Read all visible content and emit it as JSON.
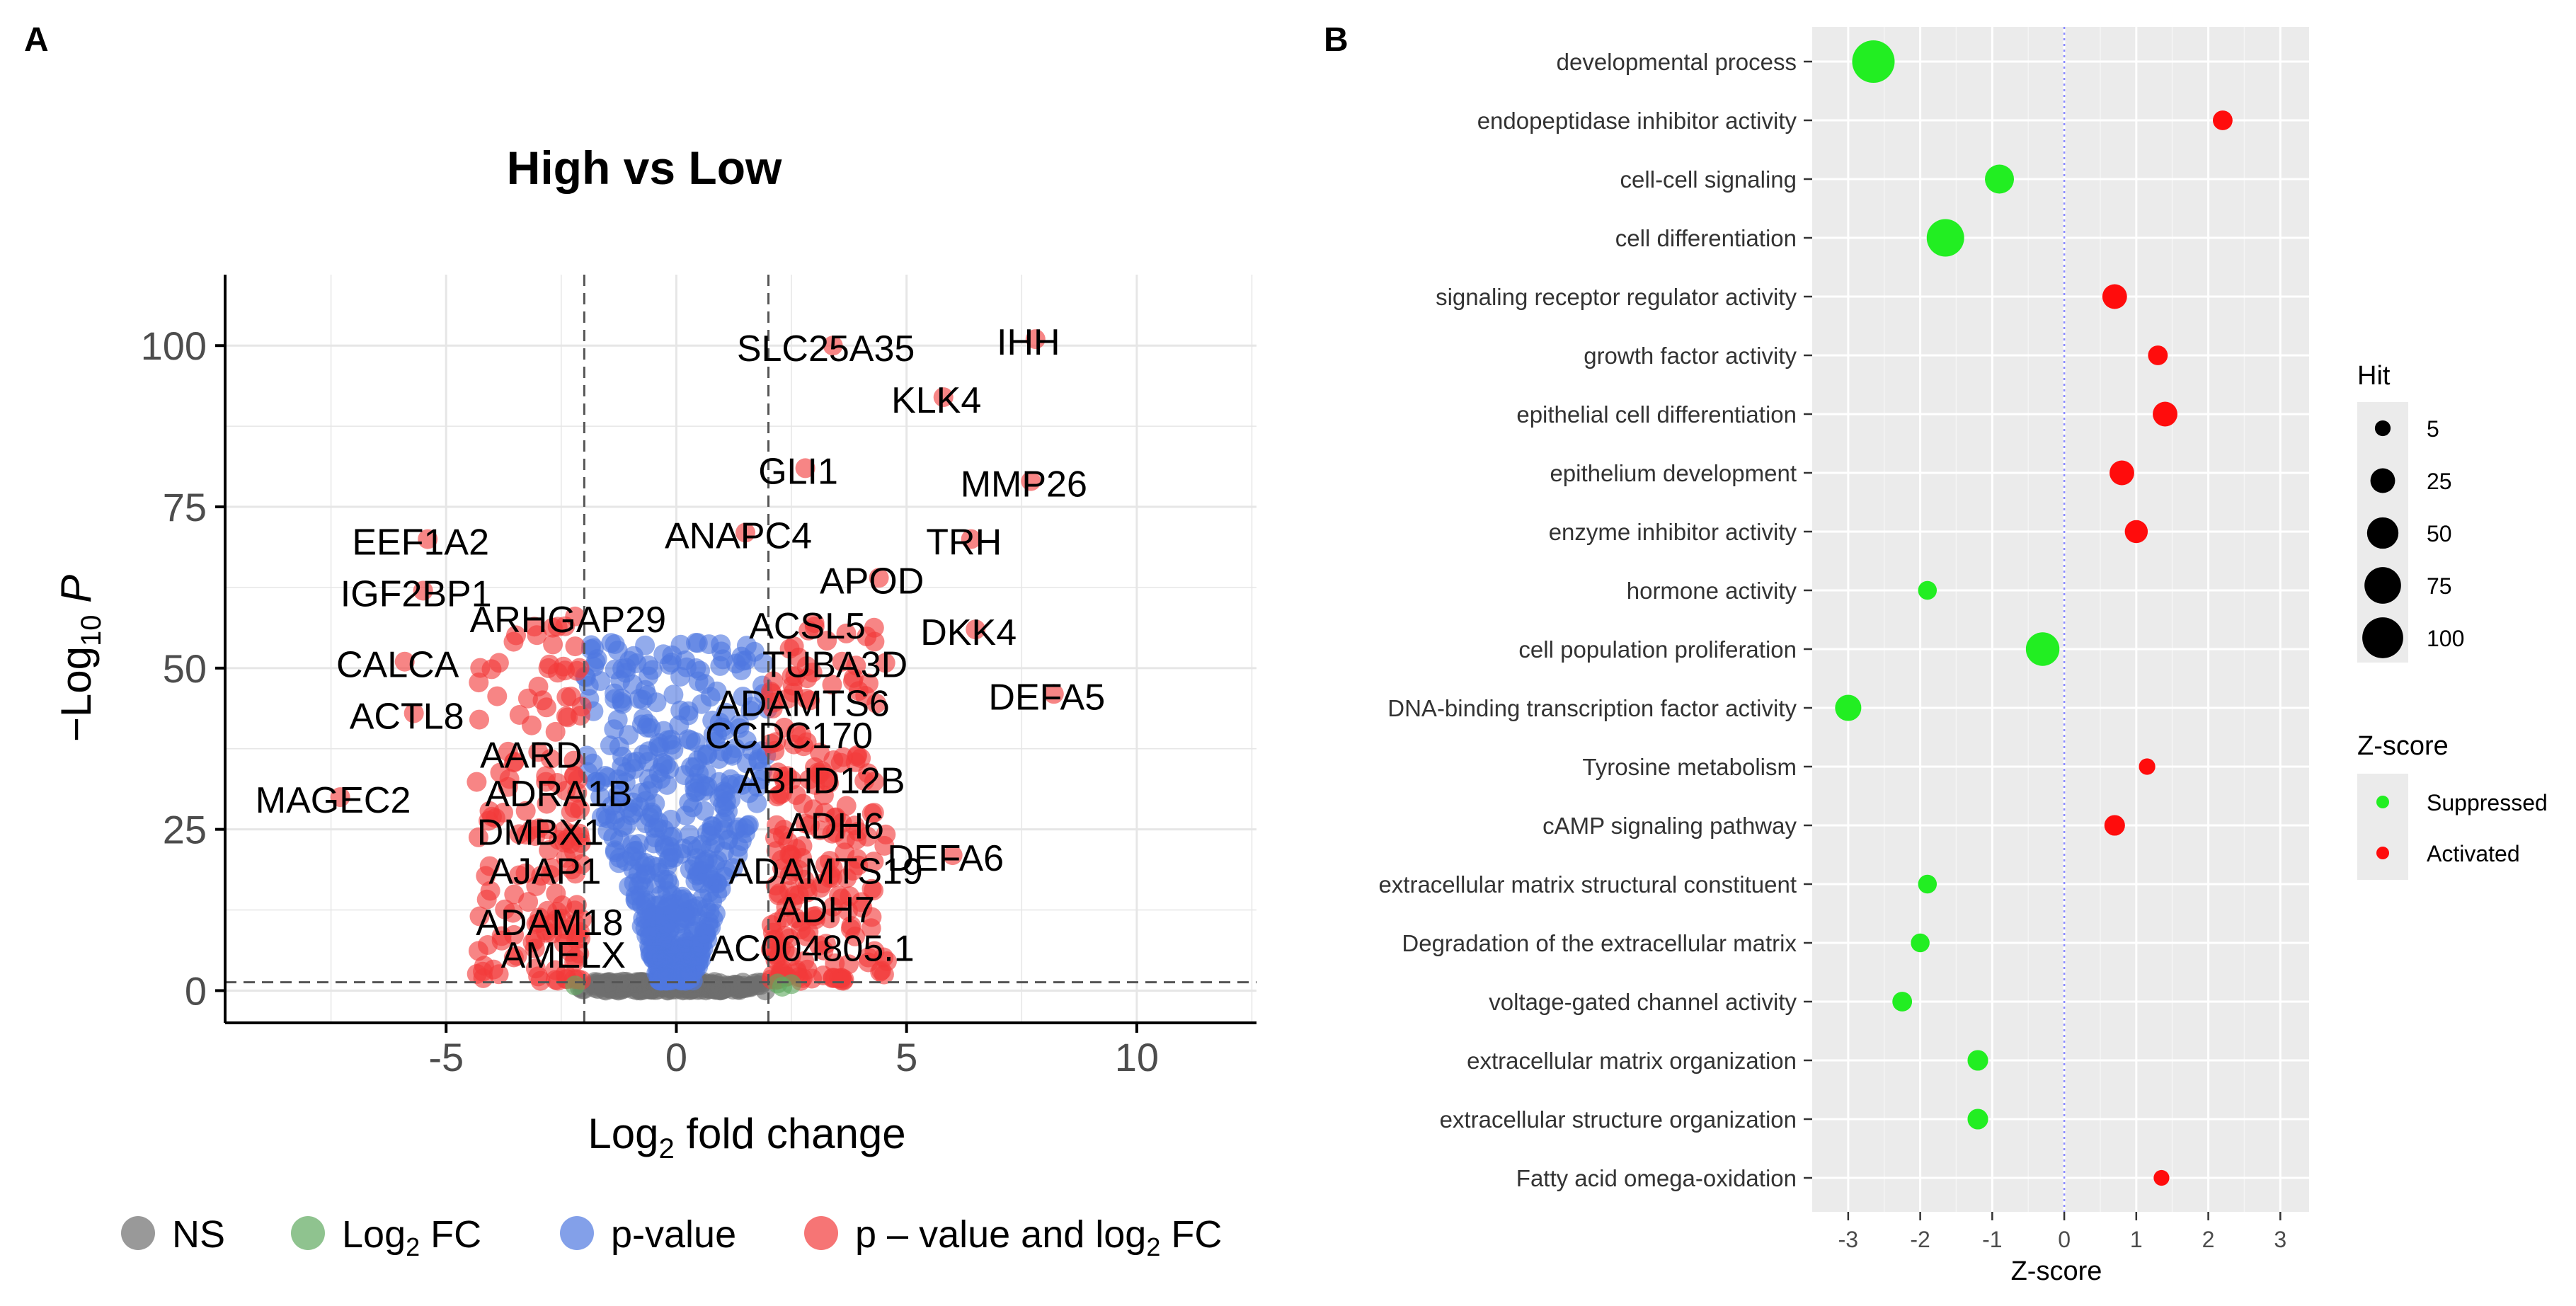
{
  "panels": {
    "a": {
      "letter": "A"
    },
    "b": {
      "letter": "B"
    }
  },
  "colors": {
    "ns": "#6e6e6e",
    "log2fc": "#5fa95f",
    "pvalue": "#4f78e0",
    "both": "#f23a3a",
    "suppressed": "#22ee22",
    "activated": "#ff0c0c",
    "panel_bg": "#ebebeb"
  },
  "chart_data": [
    {
      "type": "scatter",
      "title": "High vs Low",
      "xlabel": "Log2 fold change",
      "ylabel": "-Log10 P",
      "xlim": [
        -9.8,
        12.6
      ],
      "ylim": [
        -5,
        111
      ],
      "x_ticks": [
        -5,
        0,
        5,
        10
      ],
      "x_tick_labels": [
        "-5",
        "0",
        "5",
        "10"
      ],
      "y_ticks": [
        0,
        25,
        50,
        75,
        100
      ],
      "y_tick_labels": [
        "0",
        "25",
        "50",
        "75",
        "100"
      ],
      "fc_cutoff": 2,
      "p_cutoff_line": 1.3,
      "grid": true,
      "legend_position": "bottom",
      "legend": [
        {
          "key": "ns",
          "label": "NS"
        },
        {
          "key": "log2fc",
          "label": "Log2 FC"
        },
        {
          "key": "pvalue",
          "label": "p-value"
        },
        {
          "key": "both",
          "label": "p – value and log2 FC"
        }
      ],
      "labeled_genes": [
        {
          "label": "IHH",
          "x": 7.8,
          "y": 101
        },
        {
          "label": "SLC25A35",
          "x": 3.4,
          "y": 100
        },
        {
          "label": "KLK4",
          "x": 5.8,
          "y": 92
        },
        {
          "label": "GLI1",
          "x": 2.8,
          "y": 81
        },
        {
          "label": "MMP26",
          "x": 7.7,
          "y": 79
        },
        {
          "label": "EEF1A2",
          "x": -5.4,
          "y": 70
        },
        {
          "label": "ANAPC4",
          "x": 1.5,
          "y": 71
        },
        {
          "label": "TRH",
          "x": 6.4,
          "y": 70
        },
        {
          "label": "APOD",
          "x": 4.4,
          "y": 64
        },
        {
          "label": "IGF2BP1",
          "x": -5.5,
          "y": 62
        },
        {
          "label": "ARHGAP29",
          "x": -2.2,
          "y": 58
        },
        {
          "label": "ACSL5",
          "x": 3.0,
          "y": 57
        },
        {
          "label": "DKK4",
          "x": 6.5,
          "y": 56
        },
        {
          "label": "TUBA3D",
          "x": 3.6,
          "y": 51
        },
        {
          "label": "CALCA",
          "x": -5.9,
          "y": 51
        },
        {
          "label": "ADAMTS6",
          "x": 2.9,
          "y": 45
        },
        {
          "label": "DEFA5",
          "x": 8.2,
          "y": 46
        },
        {
          "label": "ACTL8",
          "x": -5.7,
          "y": 43
        },
        {
          "label": "CCDC170",
          "x": 2.6,
          "y": 40
        },
        {
          "label": "AARD",
          "x": -3.0,
          "y": 37
        },
        {
          "label": "ABHD12B",
          "x": 3.3,
          "y": 33
        },
        {
          "label": "ADRA1B",
          "x": -2.4,
          "y": 31
        },
        {
          "label": "MAGEC2",
          "x": -7.3,
          "y": 30
        },
        {
          "label": "DMBX1",
          "x": -2.8,
          "y": 25
        },
        {
          "label": "ADH6",
          "x": 3.6,
          "y": 26
        },
        {
          "label": "DEFA6",
          "x": 6.0,
          "y": 21
        },
        {
          "label": "AJAP1",
          "x": -2.7,
          "y": 19
        },
        {
          "label": "ADAMTS19",
          "x": 3.4,
          "y": 19
        },
        {
          "label": "ADH7",
          "x": 3.4,
          "y": 13
        },
        {
          "label": "ADAM18",
          "x": -2.6,
          "y": 11
        },
        {
          "label": "AC004805.1",
          "x": 3.1,
          "y": 7
        },
        {
          "label": "AMELX",
          "x": -2.3,
          "y": 6
        }
      ]
    },
    {
      "type": "scatter",
      "title": "",
      "xlabel": "Z-score",
      "ylabel": "",
      "xlim": [
        -3.5,
        3.4
      ],
      "x_ticks": [
        -3,
        -2,
        -1,
        0,
        1,
        2,
        3
      ],
      "x_tick_labels": [
        "-3",
        "-2",
        "-1",
        "0",
        "1",
        "2",
        "3"
      ],
      "reference_line_x": 0,
      "size_legend": {
        "title": "Hit",
        "entries": [
          {
            "label": "5",
            "value": 5
          },
          {
            "label": "25",
            "value": 25
          },
          {
            "label": "50",
            "value": 50
          },
          {
            "label": "75",
            "value": 75
          },
          {
            "label": "100",
            "value": 100
          }
        ]
      },
      "color_legend": {
        "title": "Z-score",
        "entries": [
          {
            "key": "suppressed",
            "label": "Suppressed"
          },
          {
            "key": "activated",
            "label": "Activated"
          }
        ]
      },
      "categories": [
        {
          "term": "developmental process",
          "z": -2.65,
          "hit": 110,
          "group": "suppressed"
        },
        {
          "term": "endopeptidase inhibitor activity",
          "z": 2.2,
          "hit": 12,
          "group": "activated"
        },
        {
          "term": "cell-cell signaling",
          "z": -0.9,
          "hit": 40,
          "group": "suppressed"
        },
        {
          "term": "cell differentiation",
          "z": -1.65,
          "hit": 80,
          "group": "suppressed"
        },
        {
          "term": "signaling receptor regulator activity",
          "z": 0.7,
          "hit": 25,
          "group": "activated"
        },
        {
          "term": "growth factor activity",
          "z": 1.3,
          "hit": 12,
          "group": "activated"
        },
        {
          "term": "epithelial cell differentiation",
          "z": 1.4,
          "hit": 25,
          "group": "activated"
        },
        {
          "term": "epithelium development",
          "z": 0.8,
          "hit": 25,
          "group": "activated"
        },
        {
          "term": "enzyme inhibitor activity",
          "z": 1.0,
          "hit": 20,
          "group": "activated"
        },
        {
          "term": "hormone activity",
          "z": -1.9,
          "hit": 10,
          "group": "suppressed"
        },
        {
          "term": "cell population proliferation",
          "z": -0.3,
          "hit": 60,
          "group": "suppressed"
        },
        {
          "term": "DNA-binding transcription factor activity",
          "z": -3.0,
          "hit": 30,
          "group": "suppressed"
        },
        {
          "term": "Tyrosine metabolism",
          "z": 1.15,
          "hit": 6,
          "group": "activated"
        },
        {
          "term": "cAMP signaling pathway",
          "z": 0.7,
          "hit": 14,
          "group": "activated"
        },
        {
          "term": "extracellular matrix structural constituent",
          "z": -1.9,
          "hit": 10,
          "group": "suppressed"
        },
        {
          "term": "Degradation of the extracellular matrix",
          "z": -2.0,
          "hit": 10,
          "group": "suppressed"
        },
        {
          "term": "voltage-gated channel activity",
          "z": -2.25,
          "hit": 12,
          "group": "suppressed"
        },
        {
          "term": "extracellular matrix organization",
          "z": -1.2,
          "hit": 14,
          "group": "suppressed"
        },
        {
          "term": "extracellular structure organization",
          "z": -1.2,
          "hit": 14,
          "group": "suppressed"
        },
        {
          "term": "Fatty acid omega-oxidation",
          "z": 1.35,
          "hit": 5,
          "group": "activated"
        }
      ]
    }
  ]
}
